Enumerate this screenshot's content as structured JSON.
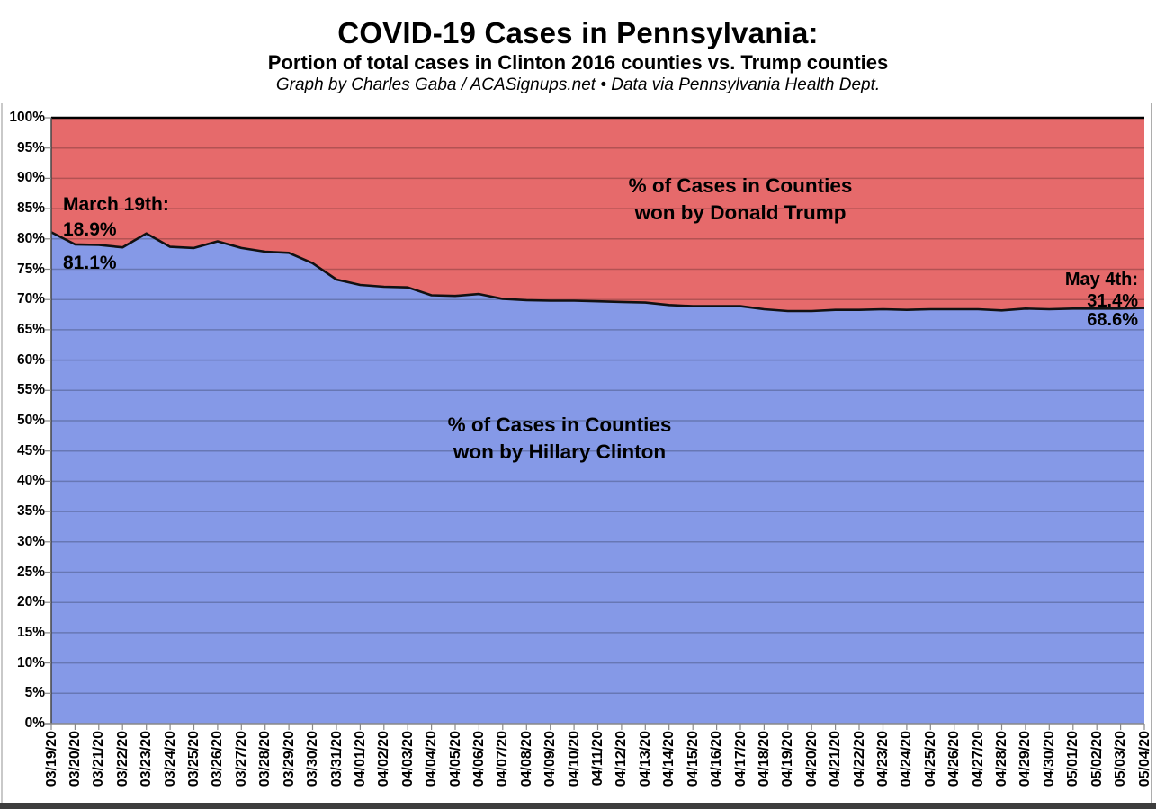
{
  "header": {
    "title": "COVID-19 Cases in Pennsylvania:",
    "subtitle": "Portion of total cases in Clinton 2016 counties vs. Trump counties",
    "byline": "Graph by Charles Gaba / ACASignups.net  •  Data via Pennsylvania Health Dept."
  },
  "annotations": {
    "march": {
      "date_label": "March 19th:",
      "trump_pct": "18.9%",
      "clinton_pct": "81.1%"
    },
    "may": {
      "date_label": "May 4th:",
      "trump_pct": "31.4%",
      "clinton_pct": "68.6%"
    },
    "trump_area": [
      "% of Cases in Counties",
      "won by Donald Trump"
    ],
    "clinton_area": [
      "% of Cases in Counties",
      "won by Hillary Clinton"
    ]
  },
  "colors": {
    "trump_area": "#E66A6B",
    "clinton_area": "#8599E7",
    "boundary_line": "#111111",
    "gridline": "rgba(0,0,0,0.22)",
    "axis": "#888888"
  },
  "chart_data": {
    "type": "area",
    "stacked": true,
    "title": "COVID-19 Cases in Pennsylvania: Portion of total cases in Clinton 2016 counties vs. Trump counties",
    "xlabel": "",
    "ylabel": "",
    "ylim": [
      0,
      100
    ],
    "grid": true,
    "grid_step_pct": 5,
    "y_axis_ticks": [
      "100%",
      "95%",
      "90%",
      "85%",
      "80%",
      "75%",
      "70%",
      "65%",
      "60%",
      "55%",
      "50%",
      "45%",
      "40%",
      "35%",
      "30%",
      "25%",
      "20%",
      "15%",
      "10%",
      "5%",
      "0%"
    ],
    "x": [
      "03/19/20",
      "03/20/20",
      "03/21/20",
      "03/22/20",
      "03/23/20",
      "03/24/20",
      "03/25/20",
      "03/26/20",
      "03/27/20",
      "03/28/20",
      "03/29/20",
      "03/30/20",
      "03/31/20",
      "04/01/20",
      "04/02/20",
      "04/03/20",
      "04/04/20",
      "04/05/20",
      "04/06/20",
      "04/07/20",
      "04/08/20",
      "04/09/20",
      "04/10/20",
      "04/11/20",
      "04/12/20",
      "04/13/20",
      "04/14/20",
      "04/15/20",
      "04/16/20",
      "04/17/20",
      "04/18/20",
      "04/19/20",
      "04/20/20",
      "04/21/20",
      "04/22/20",
      "04/23/20",
      "04/24/20",
      "04/25/20",
      "04/26/20",
      "04/27/20",
      "04/28/20",
      "04/29/20",
      "04/30/20",
      "05/01/20",
      "05/02/20",
      "05/03/20",
      "05/04/20"
    ],
    "series": [
      {
        "name": "% of Cases in Counties won by Hillary Clinton",
        "color": "#8599E7",
        "values": [
          81.1,
          79.1,
          79.0,
          78.6,
          80.9,
          78.7,
          78.5,
          79.6,
          78.5,
          77.9,
          77.7,
          76.0,
          73.3,
          72.4,
          72.1,
          72.0,
          70.7,
          70.6,
          70.9,
          70.1,
          69.9,
          69.8,
          69.8,
          69.7,
          69.6,
          69.5,
          69.1,
          68.9,
          68.9,
          68.9,
          68.4,
          68.1,
          68.1,
          68.3,
          68.3,
          68.4,
          68.3,
          68.4,
          68.4,
          68.4,
          68.2,
          68.5,
          68.4,
          68.5,
          68.5,
          68.5,
          68.6
        ]
      },
      {
        "name": "% of Cases in Counties won by Donald Trump",
        "color": "#E66A6B",
        "values": [
          18.9,
          20.9,
          21.0,
          21.4,
          19.1,
          21.3,
          21.5,
          20.4,
          21.5,
          22.1,
          22.3,
          24.0,
          26.7,
          27.6,
          27.9,
          28.0,
          29.3,
          29.4,
          29.1,
          29.9,
          30.1,
          30.2,
          30.2,
          30.3,
          30.4,
          30.5,
          30.9,
          31.1,
          31.1,
          31.1,
          31.6,
          31.9,
          31.9,
          31.7,
          31.7,
          31.6,
          31.7,
          31.6,
          31.6,
          31.6,
          31.8,
          31.5,
          31.6,
          31.5,
          31.5,
          31.5,
          31.4
        ]
      }
    ]
  }
}
